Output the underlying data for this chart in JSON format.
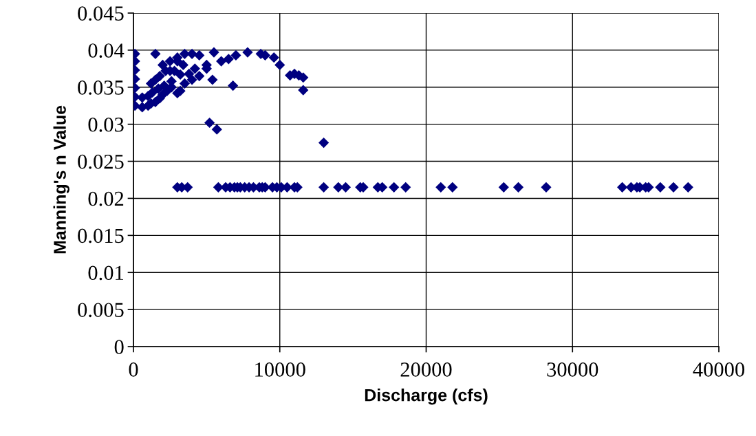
{
  "chart_data": {
    "type": "scatter",
    "xlabel": "Discharge (cfs)",
    "ylabel": "Manning's n Value",
    "xlim": [
      0,
      40000
    ],
    "ylim": [
      0,
      0.045
    ],
    "xticks": [
      0,
      10000,
      20000,
      30000,
      40000
    ],
    "yticks": [
      {
        "value": 0,
        "label": "0"
      },
      {
        "value": 0.005,
        "label": "0.005"
      },
      {
        "value": 0.01,
        "label": "0.01"
      },
      {
        "value": 0.015,
        "label": "0.015"
      },
      {
        "value": 0.02,
        "label": "0.02"
      },
      {
        "value": 0.025,
        "label": "0.025"
      },
      {
        "value": 0.03,
        "label": "0.03"
      },
      {
        "value": 0.035,
        "label": "0.035"
      },
      {
        "value": 0.04,
        "label": "0.04"
      },
      {
        "value": 0.045,
        "label": "0.045"
      }
    ],
    "grid": true,
    "marker": "diamond",
    "series": [
      {
        "color": "#000080",
        "x": [
          100,
          100,
          100,
          100,
          100,
          100,
          100,
          600,
          1000,
          1200,
          1500,
          1800,
          2000,
          2300,
          2600,
          600,
          1200,
          1500,
          1800,
          2200,
          2500,
          1500,
          2000,
          2500,
          3000,
          3500,
          4000,
          4500,
          5000,
          5500,
          6000,
          6500,
          7000,
          7800,
          8700,
          9000,
          9600,
          10000,
          10700,
          11000,
          11300,
          11600,
          11600,
          13000,
          5200,
          5700,
          6800,
          5400,
          4500,
          4000,
          3500,
          3000,
          3200,
          2800,
          4200,
          5000,
          3800,
          3200,
          1000,
          1300,
          1700,
          2100,
          2600,
          3000,
          3400,
          3000,
          3300,
          3700,
          5800,
          6300,
          6600,
          6900,
          7100,
          7300,
          7600,
          7900,
          8200,
          8600,
          8800,
          9000,
          9500,
          9800,
          10100,
          10500,
          11000,
          11200,
          13000,
          14000,
          14500,
          15500,
          15700,
          16700,
          17000,
          17800,
          18600,
          21000,
          21800,
          25300,
          26300,
          28200,
          33400,
          34000,
          34400,
          34600,
          35000,
          35200,
          36000,
          36900,
          37900
        ],
        "values": [
          0.0325,
          0.0337,
          0.0349,
          0.0361,
          0.0373,
          0.0385,
          0.0395,
          0.0323,
          0.0325,
          0.0328,
          0.033,
          0.0335,
          0.034,
          0.0345,
          0.035,
          0.0336,
          0.0355,
          0.036,
          0.0365,
          0.0372,
          0.0372,
          0.0395,
          0.038,
          0.0385,
          0.039,
          0.0395,
          0.0395,
          0.0393,
          0.038,
          0.0397,
          0.0385,
          0.0388,
          0.0393,
          0.0397,
          0.0395,
          0.0393,
          0.039,
          0.038,
          0.0366,
          0.0368,
          0.0366,
          0.0363,
          0.0346,
          0.0275,
          0.0302,
          0.0293,
          0.0352,
          0.036,
          0.0365,
          0.036,
          0.0355,
          0.0342,
          0.0367,
          0.0372,
          0.0375,
          0.0375,
          0.0368,
          0.0345,
          0.0338,
          0.0343,
          0.0348,
          0.0352,
          0.0358,
          0.0385,
          0.038,
          0.0215,
          0.0215,
          0.0215,
          0.0215,
          0.0215,
          0.0215,
          0.0215,
          0.0215,
          0.0215,
          0.0215,
          0.0215,
          0.0215,
          0.0215,
          0.0215,
          0.0215,
          0.0215,
          0.0215,
          0.0215,
          0.0215,
          0.0215,
          0.0215,
          0.0215,
          0.0215,
          0.0215,
          0.0215,
          0.0215,
          0.0215,
          0.0215,
          0.0215,
          0.0215,
          0.0215,
          0.0215,
          0.0215,
          0.0215,
          0.0215,
          0.0215,
          0.0215,
          0.0215,
          0.0215,
          0.0215,
          0.0215,
          0.0215,
          0.0215,
          0.0215
        ]
      }
    ]
  }
}
